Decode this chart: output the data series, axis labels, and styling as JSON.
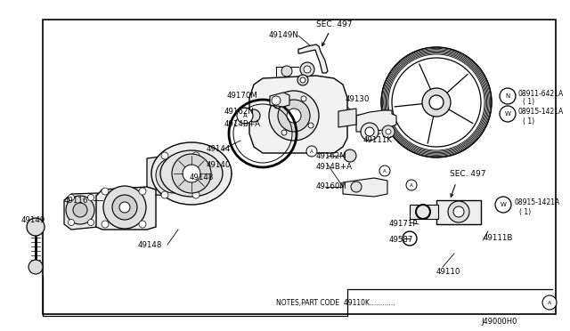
{
  "bg_color": "#ffffff",
  "line_color": "#000000",
  "fig_width": 6.4,
  "fig_height": 3.72,
  "dpi": 100,
  "diagram_code": "J49000H0",
  "notes_text": "NOTES,PART CODE  49110K............",
  "border_ltrb": [
    0.075,
    0.06,
    0.975,
    0.95
  ]
}
